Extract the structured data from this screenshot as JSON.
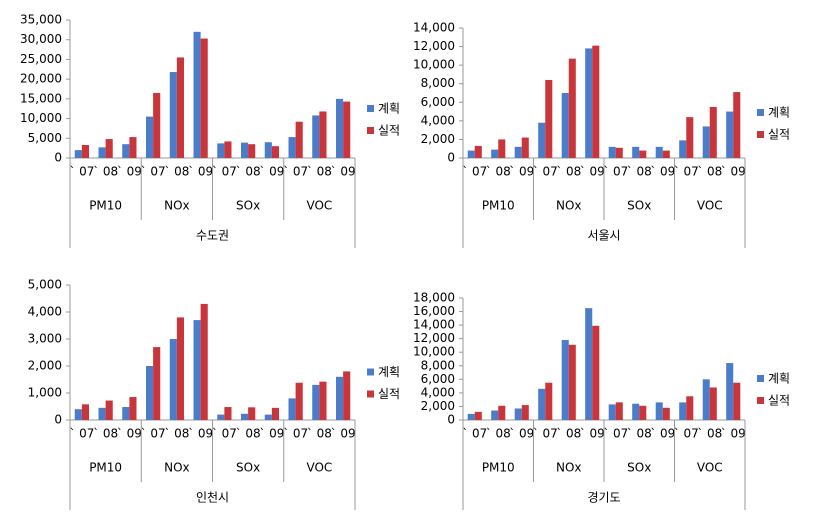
{
  "chart_data": [
    {
      "type": "bar",
      "xlabel": "수도권",
      "categories": [
        "` 07",
        "` 08",
        "` 09",
        "` 07",
        "` 08",
        "` 09",
        "` 07",
        "` 08",
        "` 09",
        "` 07",
        "` 08",
        "` 09"
      ],
      "groups": [
        "PM10",
        "NOx",
        "SOx",
        "VOC"
      ],
      "series": [
        {
          "name": "계획",
          "color": "#4a7cc9",
          "values": [
            2000,
            2700,
            3500,
            10500,
            21800,
            32000,
            3700,
            3900,
            4000,
            5300,
            10800,
            15000
          ]
        },
        {
          "name": "실적",
          "color": "#c8353a",
          "values": [
            3300,
            4800,
            5300,
            16500,
            25500,
            30300,
            4200,
            3500,
            3000,
            9200,
            11800,
            14300
          ]
        }
      ],
      "ylim": [
        0,
        35000
      ],
      "yticks": [
        0,
        {
          "value": 5000,
          "label": "5,000"
        },
        {
          "value": 10000,
          "label": "10,000"
        },
        {
          "value": 15000,
          "label": "15,000"
        },
        {
          "value": 20000,
          "label": "20,000"
        },
        {
          "value": 25000,
          "label": "25,000"
        },
        {
          "value": 30000,
          "label": "30,000"
        },
        {
          "value": 35000,
          "label": "35,000"
        }
      ],
      "legend": "right"
    },
    {
      "type": "bar",
      "xlabel": "서울시",
      "categories": [
        "` 07",
        "` 08",
        "` 09",
        "` 07",
        "` 08",
        "` 09",
        "` 07",
        "` 08",
        "` 09",
        "` 07",
        "` 08",
        "` 09"
      ],
      "groups": [
        "PM10",
        "NOx",
        "SOx",
        "VOC"
      ],
      "series": [
        {
          "name": "계획",
          "color": "#4a7cc9",
          "values": [
            800,
            900,
            1200,
            3800,
            7000,
            11800,
            1200,
            1200,
            1200,
            1900,
            3400,
            5000
          ]
        },
        {
          "name": "실적",
          "color": "#c8353a",
          "values": [
            1300,
            2000,
            2200,
            8400,
            10700,
            12100,
            1100,
            800,
            800,
            4400,
            5500,
            7100
          ]
        }
      ],
      "ylim": [
        0,
        14000
      ],
      "yticks": [
        0,
        {
          "value": 2000,
          "label": "2,000"
        },
        {
          "value": 4000,
          "label": "4,000"
        },
        {
          "value": 6000,
          "label": "6,000"
        },
        {
          "value": 8000,
          "label": "8,000"
        },
        {
          "value": 10000,
          "label": "10,000"
        },
        {
          "value": 12000,
          "label": "12,000"
        },
        {
          "value": 14000,
          "label": "14,000"
        }
      ],
      "legend": "right"
    },
    {
      "type": "bar",
      "xlabel": "인천시",
      "categories": [
        "` 07",
        "` 08",
        "` 09",
        "` 07",
        "` 08",
        "` 09",
        "` 07",
        "` 08",
        "` 09",
        "` 07",
        "` 08",
        "` 09"
      ],
      "groups": [
        "PM10",
        "NOx",
        "SOx",
        "VOC"
      ],
      "series": [
        {
          "name": "계획",
          "color": "#4a7cc9",
          "values": [
            400,
            450,
            480,
            2000,
            3000,
            3700,
            200,
            230,
            200,
            800,
            1300,
            1600
          ]
        },
        {
          "name": "실적",
          "color": "#c8353a",
          "values": [
            580,
            720,
            850,
            2700,
            3800,
            4300,
            480,
            470,
            450,
            1380,
            1420,
            1800
          ]
        }
      ],
      "ylim": [
        0,
        5000
      ],
      "yticks": [
        0,
        {
          "value": 1000,
          "label": "1,000"
        },
        {
          "value": 2000,
          "label": "2,000"
        },
        {
          "value": 3000,
          "label": "3,000"
        },
        {
          "value": 4000,
          "label": "4,000"
        },
        {
          "value": 5000,
          "label": "5,000"
        }
      ],
      "legend": "right"
    },
    {
      "type": "bar",
      "xlabel": "경기도",
      "categories": [
        "` 07",
        "` 08",
        "` 09",
        "` 07",
        "` 08",
        "` 09",
        "` 07",
        "` 08",
        "` 09",
        "` 07",
        "` 08",
        "` 09"
      ],
      "groups": [
        "PM10",
        "NOx",
        "SOx",
        "VOC"
      ],
      "series": [
        {
          "name": "계획",
          "color": "#4a7cc9",
          "values": [
            900,
            1400,
            1700,
            4600,
            11800,
            16500,
            2300,
            2400,
            2600,
            2600,
            6000,
            8400
          ]
        },
        {
          "name": "실적",
          "color": "#c8353a",
          "values": [
            1200,
            2100,
            2200,
            5500,
            11100,
            13900,
            2600,
            2100,
            1800,
            3500,
            4800,
            5500
          ]
        }
      ],
      "ylim": [
        0,
        18000
      ],
      "yticks": [
        0,
        {
          "value": 2000,
          "label": "2,000"
        },
        {
          "value": 4000,
          "label": "4,000"
        },
        {
          "value": 6000,
          "label": "6,000"
        },
        {
          "value": 8000,
          "label": "8,000"
        },
        {
          "value": 10000,
          "label": "10,000"
        },
        {
          "value": 12000,
          "label": "12,000"
        },
        {
          "value": 14000,
          "label": "14,000"
        },
        {
          "value": 16000,
          "label": "16,000"
        },
        {
          "value": 18000,
          "label": "18,000"
        }
      ],
      "legend": "right"
    }
  ]
}
